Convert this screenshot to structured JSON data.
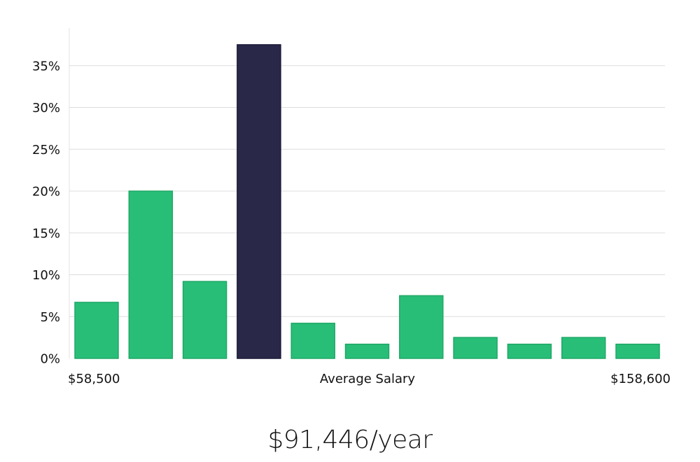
{
  "chart_data": {
    "type": "bar",
    "title": "",
    "xlabel": "Average Salary",
    "ylabel": "",
    "x_range_labels": {
      "min": "$58,500",
      "max": "$158,600"
    },
    "ylim": [
      0,
      39.5
    ],
    "yticks": [
      0,
      5,
      10,
      15,
      20,
      25,
      30,
      35
    ],
    "ytick_suffix": "%",
    "values": [
      6.7,
      20.0,
      9.2,
      37.5,
      4.2,
      1.7,
      7.5,
      2.5,
      1.7,
      2.5,
      1.7
    ],
    "highlight_index": 3,
    "colors": {
      "bar": "#28be78",
      "bar_stroke": "#20a866",
      "highlight": "#2a2848",
      "highlight_stroke": "#1a1838",
      "grid": "#dddddd",
      "axis": "#e3e3e3"
    },
    "grid": true
  },
  "salary_summary": "$91,446/year"
}
